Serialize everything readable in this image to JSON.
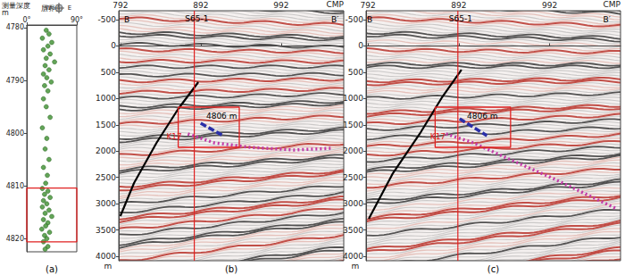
{
  "chart_data": [
    {
      "type": "scatter",
      "title": "(a)",
      "ylabel": "测量深度\nm",
      "xlabel": "层界面",
      "compass": [
        "W",
        "E"
      ],
      "color": "#3c8f2e",
      "marker": "circle",
      "x": [
        35,
        40,
        28,
        45,
        38,
        30,
        42,
        35,
        50,
        33,
        40,
        30,
        36,
        44,
        32,
        38,
        30,
        35,
        42,
        28,
        36,
        33,
        40,
        30,
        37,
        34,
        28,
        38,
        32,
        42,
        30,
        36,
        28,
        40,
        33,
        45,
        30,
        38,
        34,
        27,
        41,
        32,
        36,
        30,
        38,
        33
      ],
      "values": [
        4780.5,
        4781.2,
        4782,
        4782.8,
        4783.5,
        4784.2,
        4785,
        4785.8,
        4786.5,
        4787.2,
        4788,
        4788.8,
        4789.5,
        4790.3,
        4791,
        4792,
        4793.5,
        4795,
        4797,
        4799,
        4801,
        4803,
        4805,
        4806.5,
        4808,
        4809.5,
        4810.5,
        4811,
        4811.6,
        4812.2,
        4812.8,
        4813.4,
        4814,
        4814.6,
        4815.2,
        4815.8,
        4816.4,
        4817,
        4817.6,
        4818.2,
        4818.8,
        4819.4,
        4820,
        4820.6,
        4821.5,
        4822
      ],
      "xlim": [
        0,
        90
      ],
      "xticks": [
        {
          "value": 0,
          "label": "0°"
        },
        {
          "value": 90,
          "label": "90°"
        }
      ],
      "ylim": [
        4779.5,
        4822.5
      ],
      "yticks": [
        4780,
        4790,
        4800,
        4810,
        4820
      ],
      "boxes": [
        {
          "x": [
            0,
            90
          ],
          "y": [
            4810.4,
            4820.6
          ],
          "color": "#e02020"
        }
      ]
    },
    {
      "type": "section",
      "title": "(b)",
      "xlabel": "CMP",
      "ylabel": "m",
      "xlim": [
        790,
        1070
      ],
      "xticks": [
        792,
        892,
        992
      ],
      "ylim": [
        -670,
        4085
      ],
      "yticks": [
        -500,
        0,
        500,
        1000,
        1500,
        2000,
        2500,
        3000,
        3500,
        4000
      ],
      "series": [
        {
          "color": "#000000",
          "line_style": "solid",
          "x": [
            792,
            809,
            837,
            864,
            889
          ],
          "values": [
            3236,
            2607,
            1843,
            1198,
            688
          ]
        },
        {
          "color": "#e02020",
          "line_style": "solid",
          "x": [
            884,
            884
          ],
          "values": [
            -670,
            4085
          ]
        },
        {
          "color": "#2a2fa8",
          "line_style": "dashed",
          "x": [
            892,
            920
          ],
          "values": [
            1470,
            1707
          ]
        },
        {
          "color": "#c23aa8",
          "line_style": "dotted",
          "x": [
            876,
            909,
            953,
            1009,
            1056
          ],
          "values": [
            1673,
            1843,
            1928,
            1979,
            1945
          ]
        }
      ],
      "boxes": [
        {
          "x": [
            864,
            940
          ],
          "y": [
            1164,
            1928
          ],
          "color": "#e02020"
        }
      ],
      "annotations": [
        {
          "text": "B",
          "x": 800,
          "y": -500,
          "color": "#000000"
        },
        {
          "text": "B′",
          "x": 1059,
          "y": -500,
          "color": "#000000"
        },
        {
          "text": "S65-1",
          "x": 887,
          "y": -520,
          "color": "#000000"
        },
        {
          "text": "4806 m",
          "x": 918,
          "y": 1334,
          "color": "#000000"
        },
        {
          "text": "K17",
          "x": 859,
          "y": 1724,
          "color": "#e02020"
        }
      ]
    },
    {
      "type": "section",
      "title": "(c)",
      "xlabel": "CMP",
      "ylabel": "m",
      "xlim": [
        790,
        1070
      ],
      "xticks": [
        792,
        892,
        992
      ],
      "ylim": [
        -670,
        4085
      ],
      "yticks": [
        -500,
        0,
        500,
        1000,
        1500,
        2000,
        2500,
        3000,
        3500,
        4000
      ],
      "series": [
        {
          "color": "#000000",
          "line_style": "solid",
          "x": [
            793,
            819,
            849,
            873,
            895
          ],
          "values": [
            3287,
            2437,
            1673,
            994,
            451
          ]
        },
        {
          "color": "#e02020",
          "line_style": "solid",
          "x": [
            891,
            891
          ],
          "values": [
            -670,
            4085
          ]
        },
        {
          "color": "#2a2fa8",
          "line_style": "dashed",
          "x": [
            893,
            923
          ],
          "values": [
            1385,
            1707
          ]
        },
        {
          "color": "#c23aa8",
          "line_style": "dotted",
          "x": [
            878,
            908,
            947,
            996,
            1066
          ],
          "values": [
            1673,
            1843,
            2149,
            2522,
            3100
          ]
        }
      ],
      "boxes": [
        {
          "x": [
            866,
            949
          ],
          "y": [
            1164,
            1928
          ],
          "color": "#e02020"
        }
      ],
      "annotations": [
        {
          "text": "B",
          "x": 794,
          "y": -500,
          "color": "#000000"
        },
        {
          "text": "B′",
          "x": 1055,
          "y": -500,
          "color": "#000000"
        },
        {
          "text": "S65-1",
          "x": 894,
          "y": -520,
          "color": "#000000"
        },
        {
          "text": "4806 m",
          "x": 918,
          "y": 1334,
          "color": "#000000"
        },
        {
          "text": "K17",
          "x": 869,
          "y": 1724,
          "color": "#e02020"
        }
      ]
    }
  ]
}
